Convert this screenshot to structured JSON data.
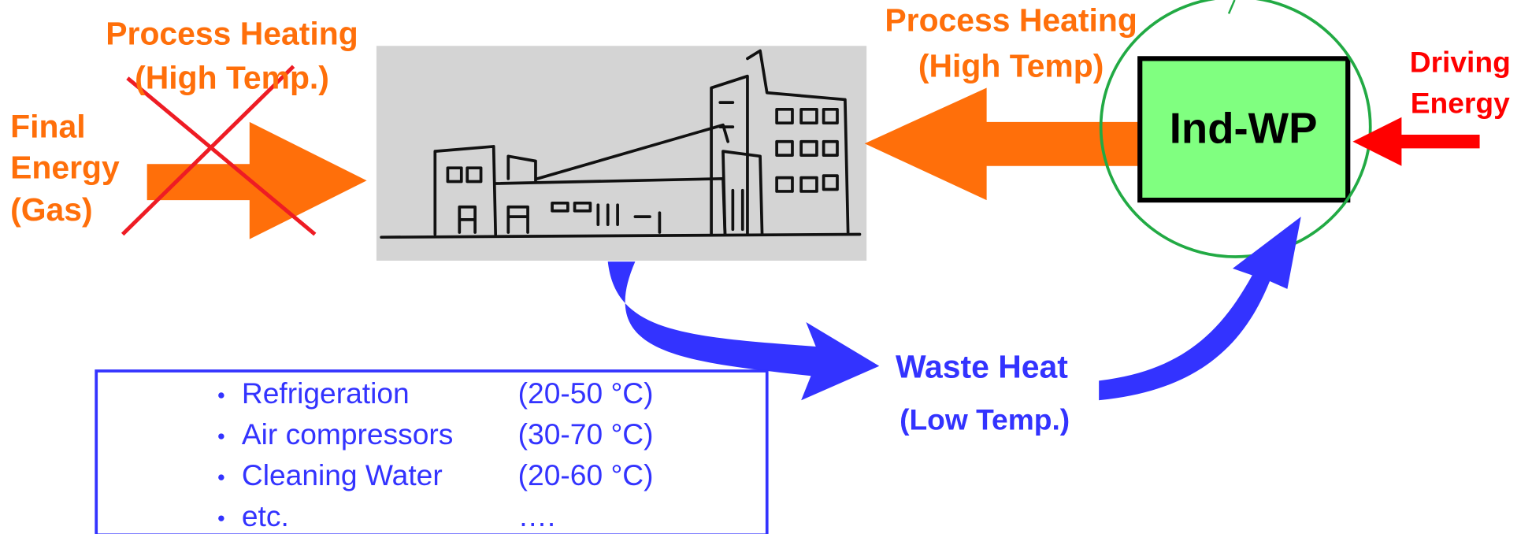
{
  "final_energy": {
    "lines": [
      "Final",
      "Energy",
      "(Gas)"
    ]
  },
  "process_heating_left": {
    "lines": [
      "Process Heating",
      "(High Temp.)"
    ]
  },
  "process_heating_right": {
    "lines": [
      "Process Heating",
      "(High Temp)"
    ]
  },
  "heat_pump": {
    "label": "Ind-WP"
  },
  "driving_energy": {
    "lines": [
      "Driving",
      "Energy"
    ]
  },
  "waste_heat": {
    "lines": [
      "Waste Heat",
      "(Low Temp.)"
    ]
  },
  "sources": {
    "items": [
      {
        "name": "Refrigeration",
        "range": "(20-50 °C)"
      },
      {
        "name": "Air compressors",
        "range": "(30-70 °C)"
      },
      {
        "name": "Cleaning Water",
        "range": "(20-60 °C)"
      },
      {
        "name": "etc.",
        "range": "…."
      }
    ]
  }
}
